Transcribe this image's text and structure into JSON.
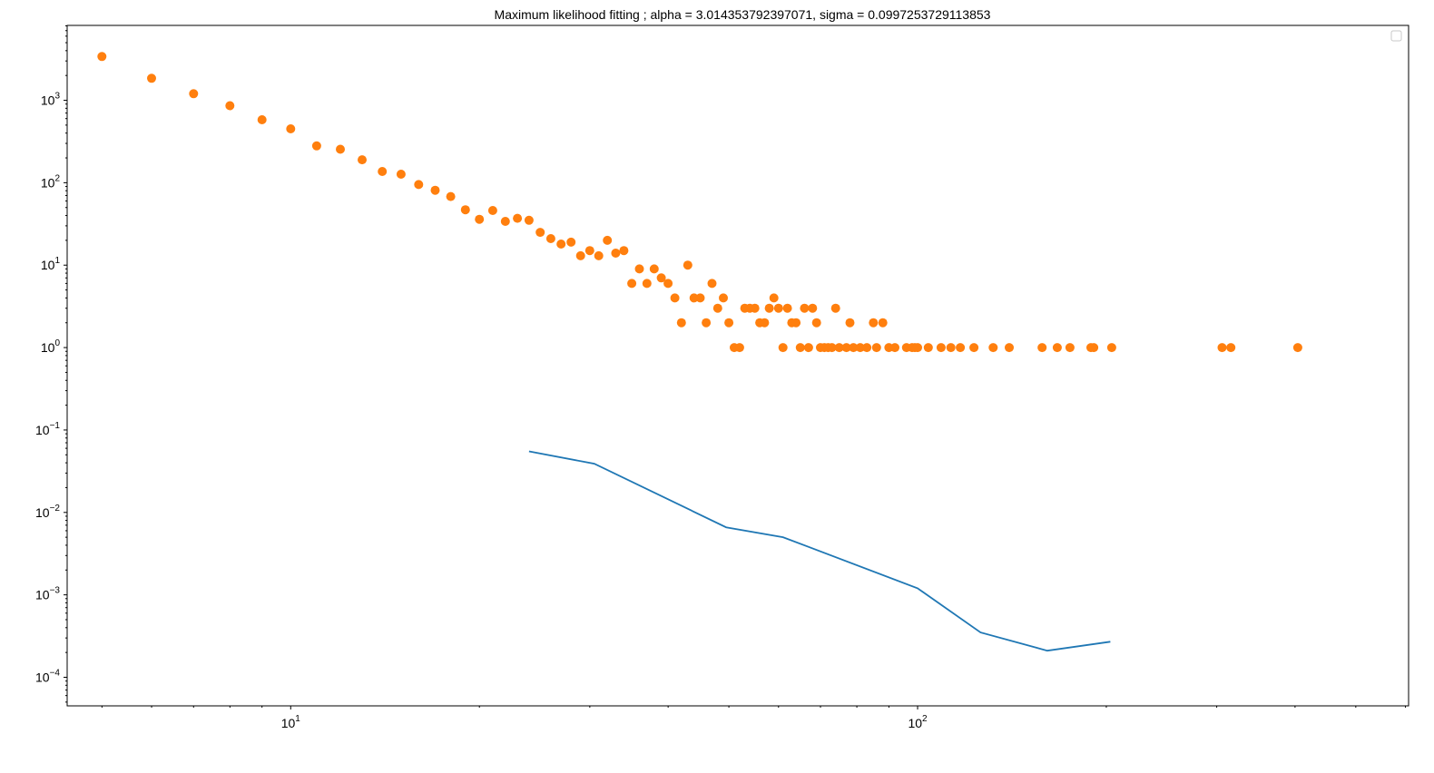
{
  "chart_data": {
    "type": "line",
    "title": "Maximum likelihood fitting ; alpha = 3.014353792397071, sigma = 0.0997253729113853",
    "xlabel": "",
    "ylabel": "",
    "xscale": "log",
    "yscale": "log",
    "xlim": [
      4.4,
      607
    ],
    "ylim": [
      4.5e-05,
      8100
    ],
    "grid": false,
    "legend": "top-right (empty)",
    "x_tick_labels": [
      {
        "value": 10,
        "base": "10",
        "exp": "1"
      },
      {
        "value": 100,
        "base": "10",
        "exp": "2"
      }
    ],
    "y_tick_labels": [
      {
        "value": 1000,
        "base": "10",
        "exp": "3"
      },
      {
        "value": 100,
        "base": "10",
        "exp": "2"
      },
      {
        "value": 10,
        "base": "10",
        "exp": "1"
      },
      {
        "value": 1,
        "base": "10",
        "exp": "0"
      },
      {
        "value": 0.1,
        "base": "10",
        "exp": "−1"
      },
      {
        "value": 0.01,
        "base": "10",
        "exp": "−2"
      },
      {
        "value": 0.001,
        "base": "10",
        "exp": "−3"
      },
      {
        "value": 0.0001,
        "base": "10",
        "exp": "−4"
      }
    ],
    "series": [
      {
        "kind": "line",
        "color": "#1f77b4",
        "x": [
          24,
          30.5,
          49.5,
          61,
          100,
          126,
          161,
          203
        ],
        "y": [
          0.055,
          0.039,
          0.0066,
          0.005,
          0.0012,
          0.00035,
          0.00021,
          0.00027
        ]
      },
      {
        "kind": "scatter",
        "color": "#ff7f0e",
        "x": [
          5,
          6,
          7,
          8,
          9,
          10,
          11,
          12,
          13,
          14,
          15,
          16,
          17,
          18,
          19,
          20,
          21,
          22,
          23,
          24,
          25,
          26,
          27,
          28,
          29,
          30,
          31,
          32,
          33,
          34,
          35,
          36,
          37,
          38,
          39,
          40,
          41,
          42,
          43,
          44,
          45,
          46,
          47,
          48,
          49,
          50,
          51,
          52,
          53,
          54,
          55,
          56,
          57,
          58,
          59,
          60,
          61,
          62,
          63,
          64,
          65,
          66,
          67,
          68,
          69,
          70,
          71,
          72,
          73,
          74,
          75,
          77,
          78,
          79,
          81,
          83,
          85,
          86,
          88,
          90,
          92,
          96,
          98,
          99,
          100,
          104,
          109,
          113,
          117,
          123,
          132,
          140,
          158,
          167,
          175,
          189,
          191,
          204,
          306,
          316,
          404
        ],
        "y": [
          3400,
          1850,
          1200,
          860,
          580,
          450,
          280,
          255,
          190,
          137,
          127,
          95,
          81,
          68,
          47,
          36,
          46,
          34,
          37,
          35,
          25,
          21,
          18,
          19,
          13,
          15,
          13,
          20,
          14,
          15,
          6,
          9,
          6,
          9,
          7,
          6,
          4,
          2,
          10,
          4,
          4,
          2,
          6,
          3,
          4,
          2,
          1,
          1,
          3,
          3,
          3,
          2,
          2,
          3,
          4,
          3,
          1,
          3,
          2,
          2,
          1,
          3,
          1,
          3,
          2,
          1,
          1,
          1,
          1,
          3,
          1,
          1,
          2,
          1,
          1,
          1,
          2,
          1,
          2,
          1,
          1,
          1,
          1,
          1,
          1,
          1,
          1,
          1,
          1,
          1,
          1,
          1,
          1,
          1,
          1,
          1,
          1,
          1,
          1,
          1,
          1
        ]
      }
    ]
  }
}
